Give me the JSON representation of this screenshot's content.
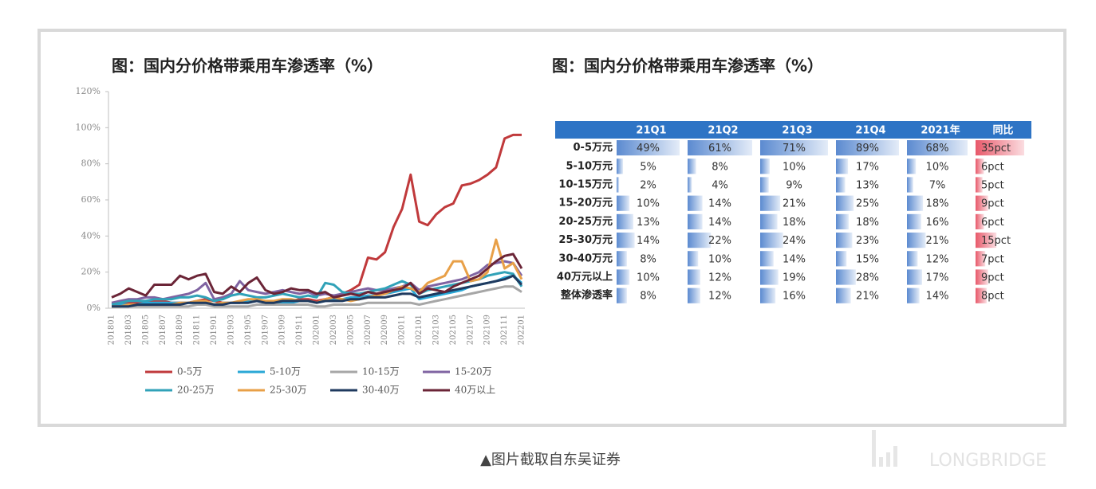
{
  "chart_data": {
    "type": "line",
    "title": "图：国内分价格带乘用车渗透率（%）",
    "categories": [
      "201801",
      null,
      "201803",
      null,
      "201805",
      null,
      "201807",
      null,
      "201809",
      null,
      "201811",
      null,
      "201901",
      null,
      "201903",
      null,
      "201905",
      null,
      "201907",
      null,
      "201909",
      null,
      "201911",
      null,
      "202001",
      null,
      "202003",
      null,
      "202005",
      null,
      "202007",
      null,
      "202009",
      null,
      "202011",
      null,
      "202101",
      null,
      "202103",
      null,
      "202105",
      null,
      "202107",
      null,
      "202109",
      null,
      "202111",
      null,
      "202201"
    ],
    "ylim": [
      0,
      120
    ],
    "yticks": [
      {
        "value": 0,
        "label": "0%"
      },
      {
        "value": 20,
        "label": "20%"
      },
      {
        "value": 40,
        "label": "40%"
      },
      {
        "value": 60,
        "label": "60%"
      },
      {
        "value": 80,
        "label": "80%"
      },
      {
        "value": 100,
        "label": "100%"
      },
      {
        "value": 120,
        "label": "120%"
      }
    ],
    "grid": false,
    "series": [
      {
        "name": "0-5万",
        "color": "#c0393b",
        "values": [
          2,
          2,
          3,
          3,
          4,
          4,
          4,
          3,
          3,
          3,
          4,
          5,
          4,
          3,
          3,
          3,
          4,
          4,
          3,
          3,
          4,
          4,
          5,
          5,
          4,
          5,
          6,
          8,
          10,
          13,
          28,
          27,
          31,
          45,
          55,
          74,
          48,
          46,
          52,
          56,
          58,
          68,
          69,
          71,
          74,
          78,
          94,
          96,
          96
        ]
      },
      {
        "name": "5-10万",
        "color": "#2aa7d6",
        "values": [
          2,
          2,
          2,
          2,
          3,
          3,
          3,
          3,
          3,
          3,
          3,
          3,
          2,
          3,
          3,
          3,
          4,
          4,
          3,
          3,
          3,
          3,
          4,
          4,
          3,
          4,
          5,
          5,
          6,
          6,
          7,
          7,
          8,
          9,
          10,
          11,
          5,
          6,
          7,
          8,
          9,
          10,
          12,
          13,
          14,
          15,
          17,
          18,
          14
        ]
      },
      {
        "name": "10-15万",
        "color": "#a6a6a6",
        "values": [
          1,
          1,
          1,
          1,
          1,
          1,
          1,
          1,
          1,
          1,
          2,
          2,
          1,
          1,
          1,
          1,
          1,
          2,
          2,
          2,
          2,
          2,
          2,
          2,
          1,
          1,
          2,
          2,
          2,
          2,
          3,
          3,
          3,
          3,
          3,
          3,
          2,
          3,
          4,
          5,
          6,
          7,
          8,
          9,
          10,
          11,
          12,
          12,
          9
        ]
      },
      {
        "name": "15-20万",
        "color": "#8064a2",
        "values": [
          3,
          4,
          5,
          5,
          6,
          6,
          5,
          6,
          7,
          8,
          10,
          14,
          5,
          6,
          8,
          15,
          10,
          9,
          8,
          9,
          10,
          9,
          8,
          9,
          7,
          8,
          7,
          8,
          9,
          10,
          11,
          10,
          10,
          11,
          12,
          14,
          10,
          12,
          13,
          14,
          15,
          16,
          18,
          20,
          24,
          25,
          26,
          25,
          18
        ]
      },
      {
        "name": "20-25万",
        "color": "#31a2b8",
        "values": [
          2,
          3,
          4,
          4,
          4,
          5,
          5,
          5,
          6,
          6,
          7,
          6,
          4,
          5,
          7,
          8,
          7,
          6,
          6,
          7,
          8,
          7,
          6,
          7,
          6,
          14,
          13,
          9,
          8,
          8,
          9,
          10,
          11,
          13,
          15,
          13,
          8,
          10,
          11,
          12,
          13,
          14,
          15,
          16,
          18,
          19,
          20,
          19,
          12
        ]
      },
      {
        "name": "25-30万",
        "color": "#e8a048",
        "values": [
          1,
          1,
          2,
          2,
          2,
          2,
          2,
          2,
          3,
          3,
          4,
          4,
          2,
          3,
          3,
          4,
          5,
          5,
          4,
          4,
          5,
          5,
          4,
          4,
          3,
          5,
          6,
          5,
          4,
          5,
          6,
          7,
          8,
          10,
          12,
          11,
          9,
          14,
          16,
          18,
          26,
          26,
          15,
          16,
          20,
          38,
          22,
          25,
          16
        ]
      },
      {
        "name": "30-40万",
        "color": "#1f3a5f",
        "values": [
          1,
          1,
          1,
          2,
          2,
          2,
          2,
          2,
          2,
          3,
          3,
          3,
          2,
          2,
          3,
          3,
          3,
          4,
          3,
          3,
          4,
          4,
          4,
          4,
          3,
          4,
          4,
          4,
          5,
          5,
          6,
          6,
          6,
          7,
          8,
          8,
          6,
          7,
          8,
          9,
          10,
          11,
          12,
          13,
          14,
          15,
          16,
          18,
          13
        ]
      },
      {
        "name": "40万以上",
        "color": "#6b2537",
        "values": [
          6,
          8,
          11,
          9,
          7,
          13,
          13,
          13,
          18,
          16,
          18,
          19,
          9,
          8,
          12,
          9,
          14,
          17,
          10,
          8,
          9,
          11,
          10,
          10,
          8,
          9,
          6,
          7,
          8,
          7,
          9,
          8,
          9,
          10,
          11,
          14,
          8,
          11,
          10,
          9,
          12,
          14,
          16,
          18,
          22,
          26,
          29,
          30,
          22
        ]
      }
    ]
  },
  "table": {
    "title": "图：国内分价格带乘用车渗透率（%）",
    "columns": [
      "21Q1",
      "21Q2",
      "21Q3",
      "21Q4",
      "2021年",
      "同比"
    ],
    "rows": [
      {
        "label": "0-5万元",
        "values": [
          49,
          61,
          71,
          89,
          68,
          35
        ],
        "value_labels": [
          "49%",
          "61%",
          "71%",
          "89%",
          "68%",
          "35pct"
        ]
      },
      {
        "label": "5-10万元",
        "values": [
          5,
          8,
          10,
          17,
          10,
          6
        ],
        "value_labels": [
          "5%",
          "8%",
          "10%",
          "17%",
          "10%",
          "6pct"
        ]
      },
      {
        "label": "10-15万元",
        "values": [
          2,
          4,
          9,
          13,
          7,
          5
        ],
        "value_labels": [
          "2%",
          "4%",
          "9%",
          "13%",
          "7%",
          "5pct"
        ]
      },
      {
        "label": "15-20万元",
        "values": [
          10,
          14,
          21,
          25,
          18,
          9
        ],
        "value_labels": [
          "10%",
          "14%",
          "21%",
          "25%",
          "18%",
          "9pct"
        ]
      },
      {
        "label": "20-25万元",
        "values": [
          13,
          14,
          18,
          18,
          16,
          6
        ],
        "value_labels": [
          "13%",
          "14%",
          "18%",
          "18%",
          "16%",
          "6pct"
        ]
      },
      {
        "label": "25-30万元",
        "values": [
          14,
          22,
          24,
          23,
          21,
          15
        ],
        "value_labels": [
          "14%",
          "22%",
          "24%",
          "23%",
          "21%",
          "15pct"
        ]
      },
      {
        "label": "30-40万元",
        "values": [
          8,
          10,
          14,
          15,
          12,
          7
        ],
        "value_labels": [
          "8%",
          "10%",
          "14%",
          "15%",
          "12%",
          "7pct"
        ]
      },
      {
        "label": "40万元以上",
        "values": [
          10,
          12,
          19,
          28,
          17,
          9
        ],
        "value_labels": [
          "10%",
          "12%",
          "19%",
          "28%",
          "17%",
          "9pct"
        ]
      },
      {
        "label": "整体渗透率",
        "values": [
          8,
          12,
          16,
          21,
          14,
          8
        ],
        "value_labels": [
          "8%",
          "12%",
          "16%",
          "21%",
          "14%",
          "8pct"
        ]
      }
    ]
  },
  "caption": "▲图片截取自东吴证券",
  "watermark": "LONGBRIDGE"
}
